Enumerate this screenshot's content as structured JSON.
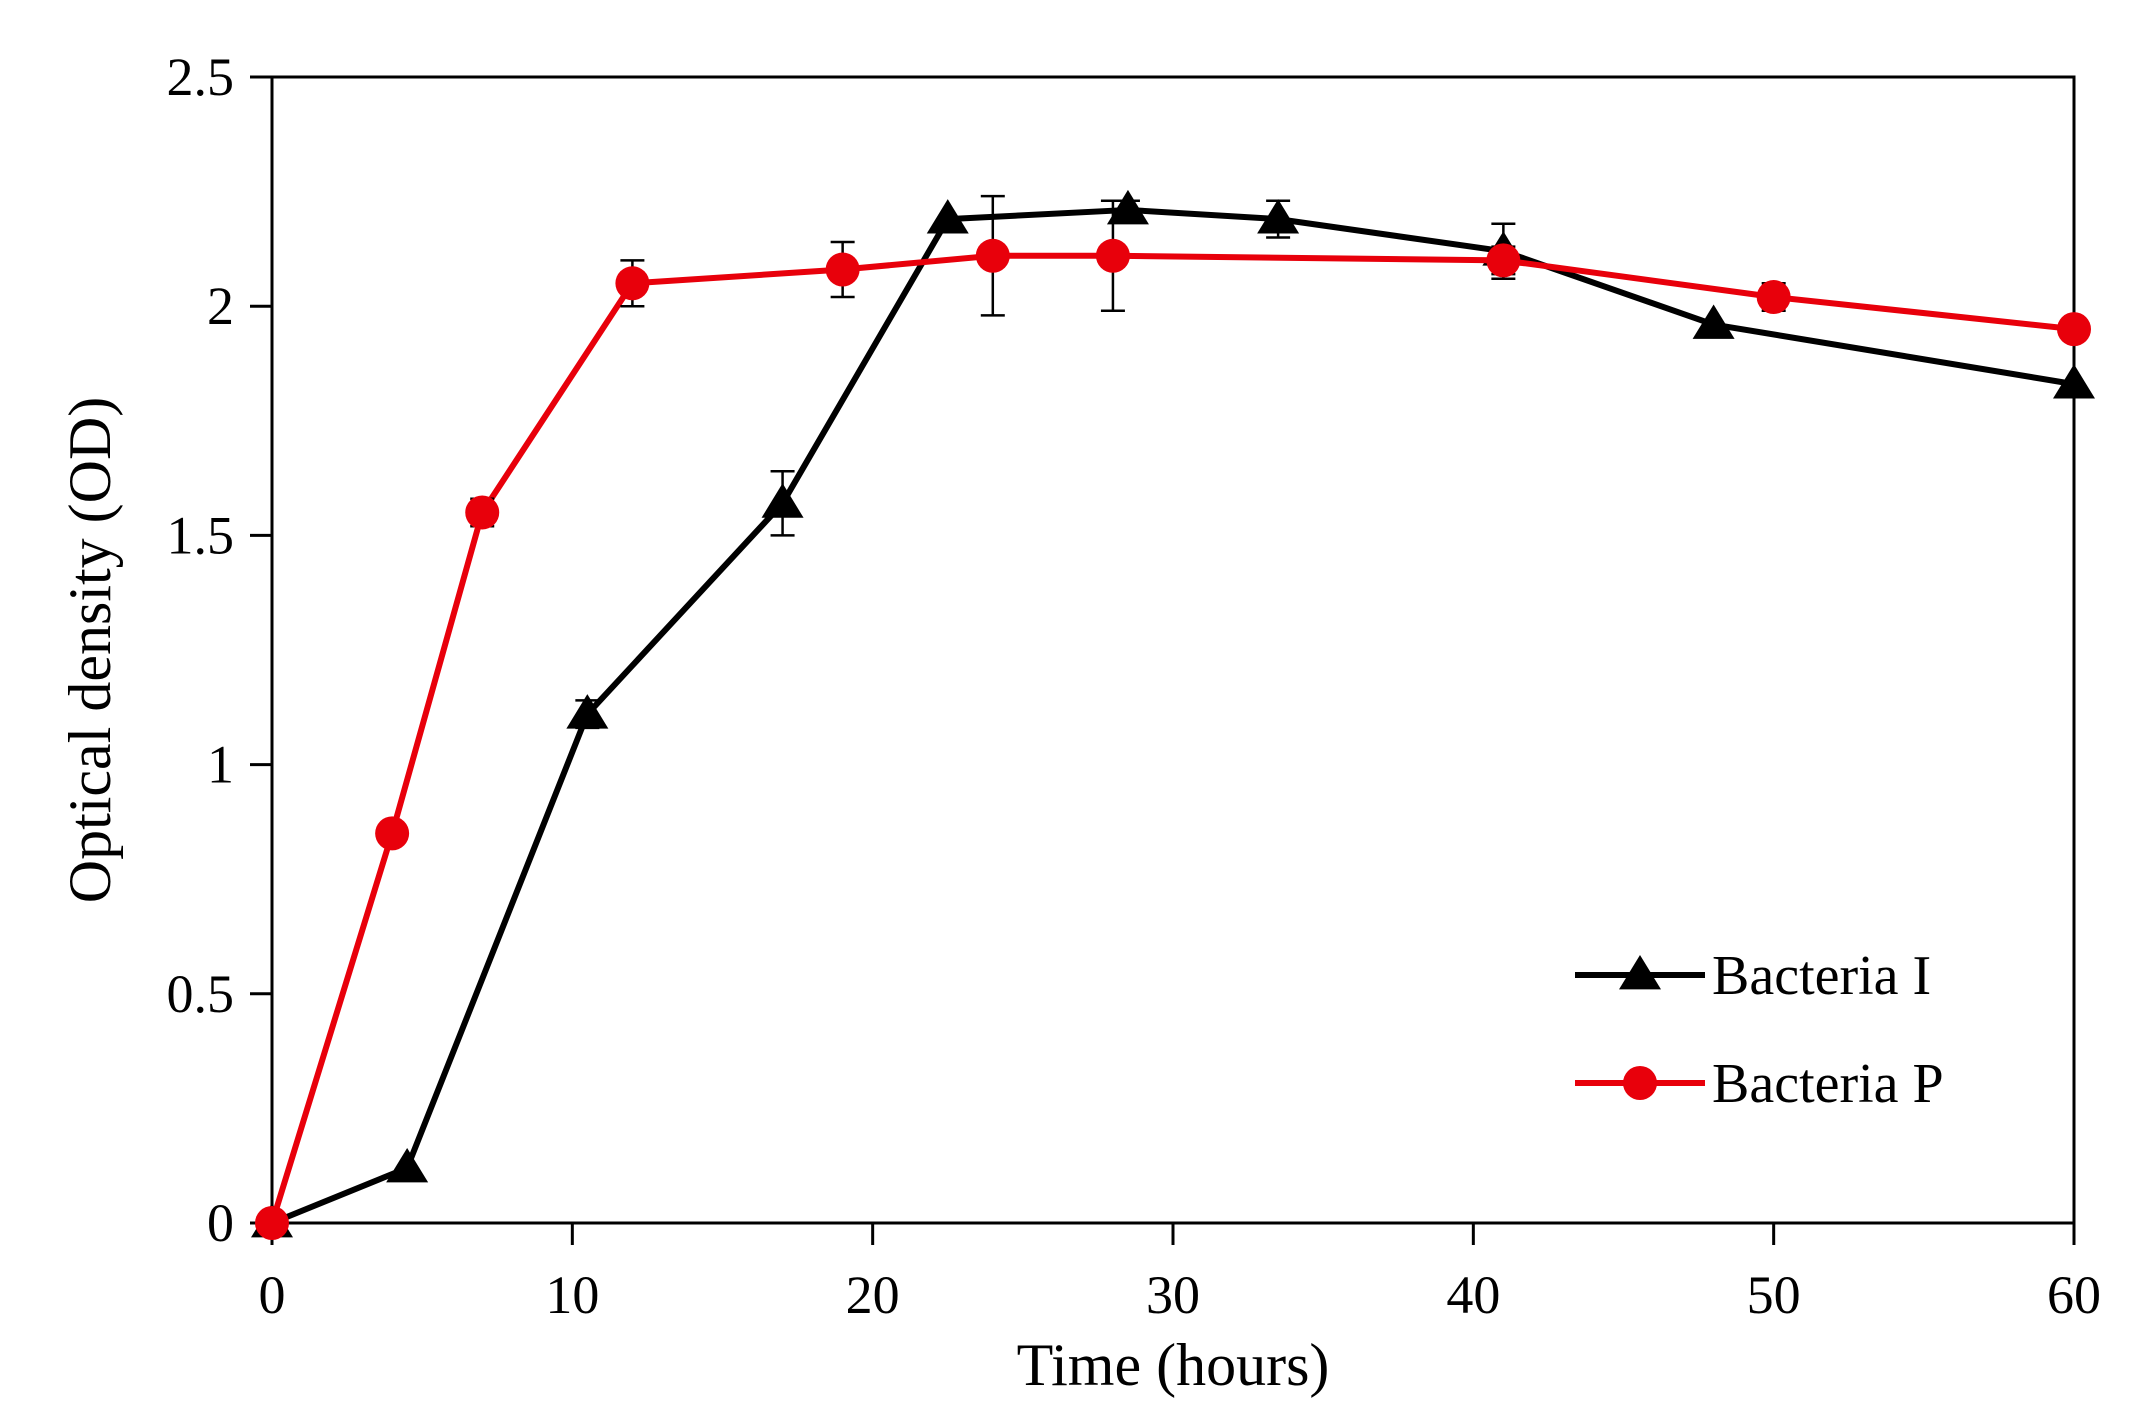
{
  "chart_data": {
    "type": "line",
    "title": "",
    "xlabel": "Time (hours)",
    "ylabel": "Optical density (OD)",
    "xlim": [
      0,
      60
    ],
    "ylim": [
      0,
      2.5
    ],
    "xticks": [
      0,
      10,
      20,
      30,
      40,
      50,
      60
    ],
    "xtick_labels": [
      "0",
      "10",
      "20",
      "30",
      "40",
      "50",
      "60"
    ],
    "yticks": [
      0,
      0.5,
      1,
      1.5,
      2,
      2.5
    ],
    "ytick_labels": [
      "0",
      "0.5",
      "1",
      "1.5",
      "2",
      "2.5"
    ],
    "grid": false,
    "legend_position": "bottom-right",
    "series": [
      {
        "name": "Bacteria I",
        "label": "Bacteria I",
        "color": "#000000",
        "marker": "triangle",
        "x": [
          0,
          4.5,
          10.5,
          17,
          22.5,
          28.5,
          33.5,
          41,
          48,
          60
        ],
        "y": [
          0,
          0.12,
          1.11,
          1.57,
          2.19,
          2.21,
          2.19,
          2.12,
          1.96,
          1.83
        ],
        "err": [
          0,
          0,
          0.03,
          0.07,
          0,
          0.02,
          0.04,
          0.06,
          0,
          0
        ]
      },
      {
        "name": "Bacteria P",
        "label": "Bacteria P",
        "color": "#e8000b",
        "marker": "circle",
        "x": [
          0,
          4,
          7,
          12,
          19,
          24,
          28,
          41,
          50,
          60
        ],
        "y": [
          0,
          0.85,
          1.55,
          2.05,
          2.08,
          2.11,
          2.11,
          2.1,
          2.02,
          1.95
        ],
        "err": [
          0,
          0,
          0.03,
          0.05,
          0.06,
          0.13,
          0.12,
          0.03,
          0.03,
          0
        ]
      }
    ]
  }
}
